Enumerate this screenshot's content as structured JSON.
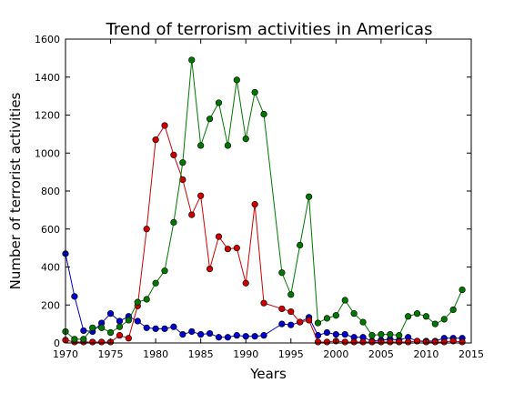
{
  "chart_data": {
    "type": "line",
    "title": "Trend of terrorism activities in Americas",
    "xlabel": "Years",
    "ylabel": "Number of terrorist activities",
    "xlim": [
      1970,
      2015
    ],
    "ylim": [
      0,
      1600
    ],
    "xticks": [
      1970,
      1975,
      1980,
      1985,
      1990,
      1995,
      2000,
      2005,
      2010,
      2015
    ],
    "yticks": [
      0,
      200,
      400,
      600,
      800,
      1000,
      1200,
      1400,
      1600
    ],
    "grid": false,
    "legend": "none",
    "series": [
      {
        "color": "#0000cc",
        "x": [
          1970,
          1971,
          1972,
          1973,
          1974,
          1975,
          1976,
          1977,
          1978,
          1979,
          1980,
          1981,
          1982,
          1983,
          1984,
          1985,
          1986,
          1987,
          1988,
          1989,
          1990,
          1991,
          1992,
          1994,
          1995,
          1996,
          1997,
          1998,
          1999,
          2000,
          2001,
          2002,
          2003,
          2004,
          2005,
          2006,
          2007,
          2008,
          2009,
          2010,
          2011,
          2012,
          2013,
          2014
        ],
        "y": [
          470,
          245,
          65,
          60,
          105,
          155,
          115,
          140,
          115,
          80,
          75,
          75,
          85,
          45,
          60,
          45,
          50,
          30,
          30,
          40,
          35,
          35,
          40,
          100,
          95,
          110,
          135,
          40,
          55,
          45,
          45,
          30,
          30,
          10,
          15,
          20,
          15,
          30,
          10,
          10,
          10,
          25,
          25,
          25
        ]
      },
      {
        "color": "#cc0000",
        "x": [
          1970,
          1971,
          1972,
          1973,
          1974,
          1975,
          1976,
          1977,
          1978,
          1979,
          1980,
          1981,
          1982,
          1983,
          1984,
          1985,
          1986,
          1987,
          1988,
          1989,
          1990,
          1991,
          1992,
          1994,
          1995,
          1996,
          1997,
          1998,
          1999,
          2000,
          2001,
          2002,
          2003,
          2004,
          2005,
          2006,
          2007,
          2008,
          2009,
          2010,
          2011,
          2012,
          2013,
          2014
        ],
        "y": [
          15,
          5,
          5,
          5,
          5,
          5,
          40,
          25,
          195,
          600,
          1070,
          1145,
          990,
          860,
          675,
          775,
          390,
          560,
          495,
          500,
          315,
          730,
          210,
          180,
          165,
          110,
          120,
          5,
          5,
          10,
          5,
          5,
          5,
          5,
          5,
          5,
          5,
          5,
          10,
          5,
          5,
          5,
          10,
          5
        ]
      },
      {
        "color": "#007700",
        "x": [
          1970,
          1971,
          1972,
          1973,
          1974,
          1975,
          1976,
          1977,
          1978,
          1979,
          1980,
          1981,
          1982,
          1983,
          1984,
          1985,
          1986,
          1987,
          1988,
          1989,
          1990,
          1991,
          1992,
          1994,
          1995,
          1996,
          1997,
          1998,
          1999,
          2000,
          2001,
          2002,
          2003,
          2004,
          2005,
          2006,
          2007,
          2008,
          2009,
          2010,
          2011,
          2012,
          2013,
          2014
        ],
        "y": [
          60,
          20,
          20,
          80,
          80,
          55,
          85,
          120,
          215,
          230,
          315,
          380,
          635,
          950,
          1490,
          1040,
          1180,
          1265,
          1040,
          1385,
          1075,
          1320,
          1205,
          370,
          255,
          515,
          770,
          105,
          130,
          145,
          225,
          155,
          110,
          40,
          45,
          45,
          40,
          140,
          155,
          140,
          100,
          125,
          175,
          280
        ]
      }
    ]
  }
}
